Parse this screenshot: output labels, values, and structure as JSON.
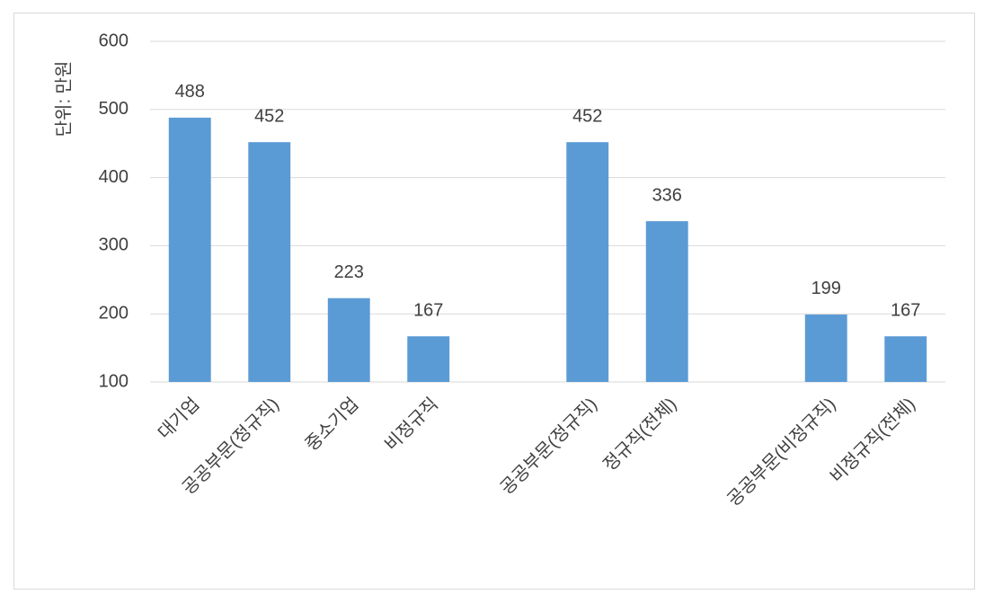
{
  "chart_data": {
    "type": "bar",
    "y_label": "단위: 만원",
    "categories": [
      "대기업",
      "공공부문(정규직)",
      "중소기업",
      "비정규직",
      null,
      "공공부문(정규직)",
      "정규직(전체)",
      null,
      "공공부문(비정규직)",
      "비정규직(전체)"
    ],
    "values": [
      488,
      452,
      223,
      167,
      null,
      452,
      336,
      null,
      199,
      167
    ],
    "color": "#5b9bd5",
    "ylim": [
      100,
      600
    ],
    "yticks": [
      100,
      200,
      300,
      400,
      500,
      600
    ],
    "grid": true
  }
}
